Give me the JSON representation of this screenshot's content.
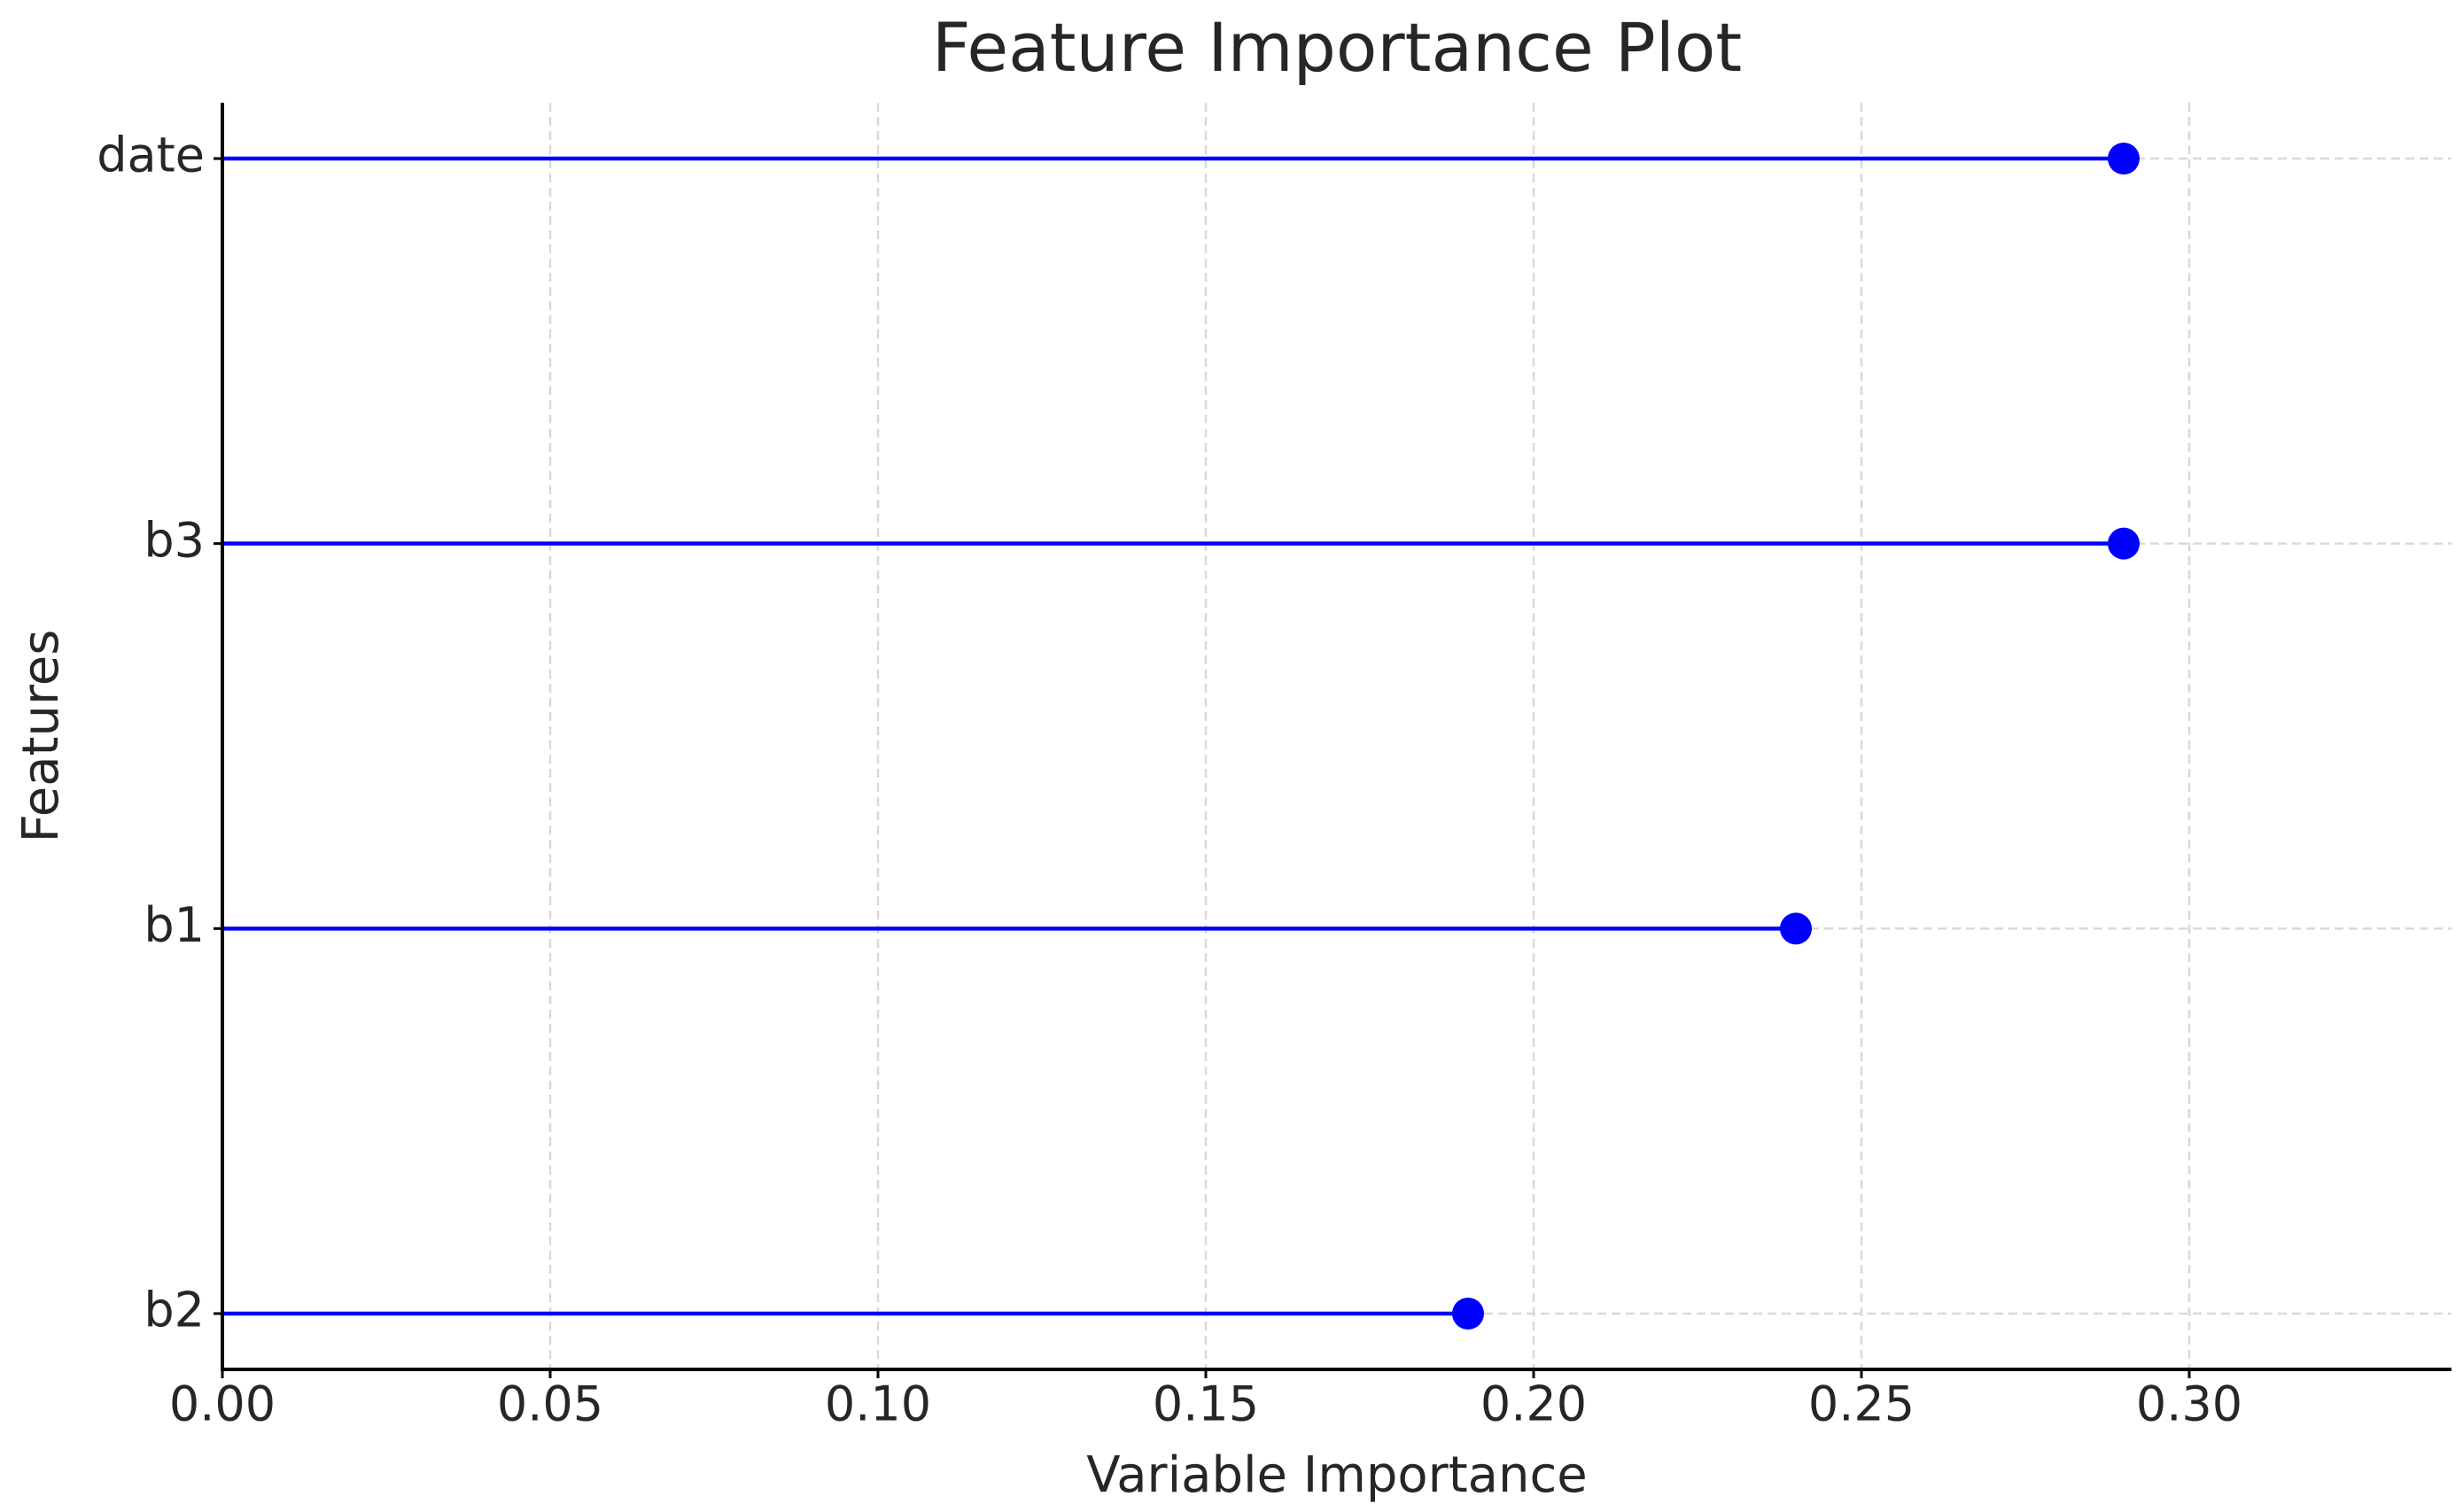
{
  "chart_data": {
    "type": "lollipop",
    "title": "Feature Importance Plot",
    "xlabel": "Variable Importance",
    "ylabel": "Features",
    "categories": [
      "b2",
      "b1",
      "b3",
      "date"
    ],
    "values": [
      0.19,
      0.24,
      0.29,
      0.29
    ],
    "color": "#0000ff",
    "xlim": [
      0,
      0.34
    ],
    "xticks": [
      {
        "value": 0,
        "label": "0.00"
      },
      {
        "value": 0.05,
        "label": "0.05"
      },
      {
        "value": 0.1,
        "label": "0.10"
      },
      {
        "value": 0.15,
        "label": "0.15"
      },
      {
        "value": 0.2,
        "label": "0.20"
      },
      {
        "value": 0.25,
        "label": "0.25"
      },
      {
        "value": 0.3,
        "label": "0.30"
      }
    ],
    "grid": true
  }
}
